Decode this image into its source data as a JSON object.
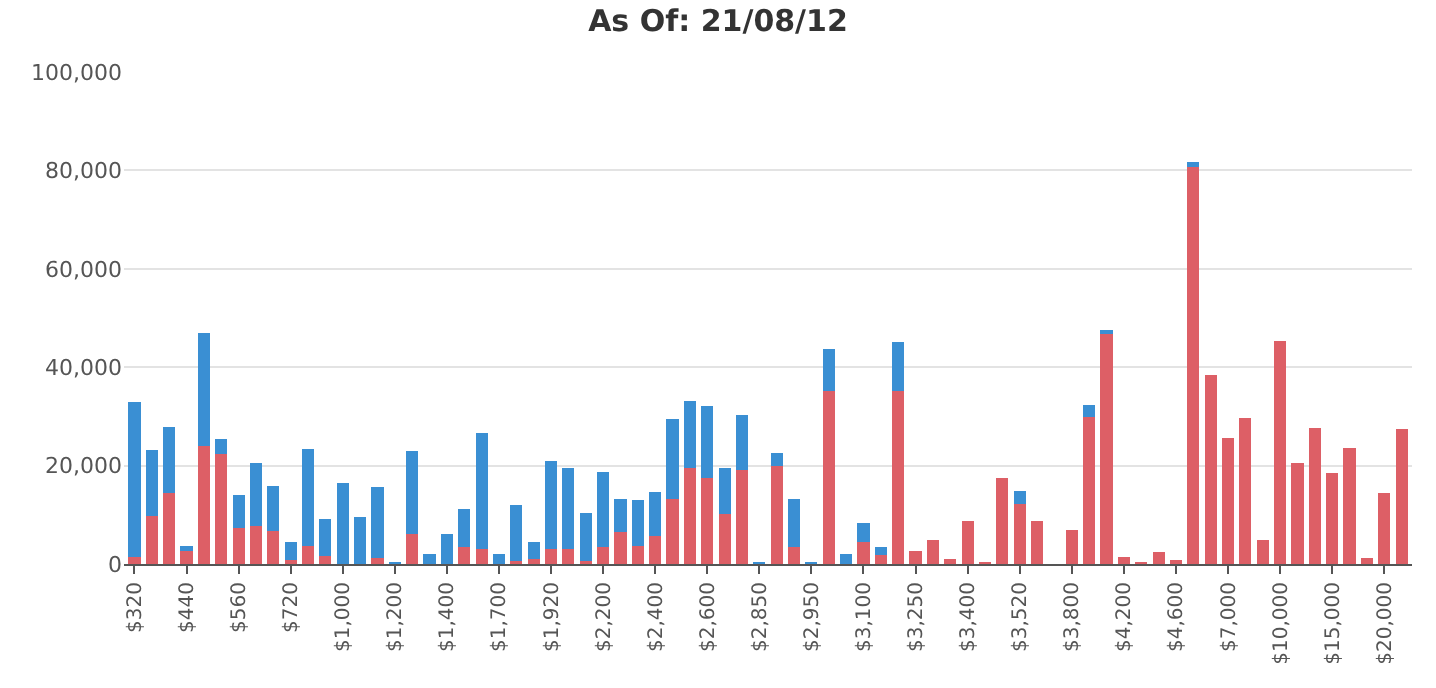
{
  "chart_data": {
    "type": "bar",
    "title": "As Of: 21/08/12",
    "stacked": true,
    "categories": [
      "$320",
      null,
      null,
      "$440",
      null,
      null,
      "$560",
      null,
      null,
      "$720",
      null,
      null,
      "$1,000",
      null,
      null,
      "$1,200",
      null,
      null,
      "$1,400",
      null,
      null,
      "$1,700",
      null,
      null,
      "$1,920",
      null,
      null,
      "$2,200",
      null,
      null,
      "$2,400",
      null,
      null,
      "$2,600",
      null,
      null,
      "$2,850",
      null,
      null,
      "$2,950",
      null,
      null,
      "$3,100",
      null,
      null,
      "$3,250",
      null,
      null,
      "$3,400",
      null,
      null,
      "$3,520",
      null,
      null,
      "$3,800",
      null,
      null,
      "$4,200",
      null,
      null,
      "$4,600",
      null,
      null,
      "$7,000",
      null,
      null,
      "$10,000",
      null,
      null,
      "$15,000",
      null,
      null,
      "$20,000",
      null
    ],
    "series": [
      {
        "color": "#dd5f66",
        "values": [
          1500,
          9800,
          14500,
          2700,
          23900,
          22300,
          7300,
          7700,
          6800,
          900,
          3600,
          1600,
          0,
          0,
          1300,
          0,
          6100,
          0,
          0,
          3400,
          3100,
          0,
          700,
          1100,
          3100,
          3100,
          600,
          3400,
          6500,
          3600,
          5600,
          13300,
          19500,
          17500,
          10200,
          19100,
          0,
          19900,
          3400,
          0,
          35100,
          0,
          4400,
          1900,
          35100,
          2700,
          4900,
          1100,
          8700,
          200,
          17500,
          12100,
          8700,
          0,
          7000,
          29900,
          46900,
          1400,
          200,
          2400,
          700,
          80700,
          38400,
          25600,
          29600,
          4900,
          45300,
          20600,
          27600,
          18500,
          23600,
          1200,
          14400,
          27500
        ]
      },
      {
        "color": "#3a8fd3",
        "values": [
          31500,
          13300,
          13400,
          900,
          23000,
          3200,
          6700,
          12900,
          9100,
          3500,
          19700,
          7600,
          16400,
          9500,
          14400,
          400,
          16900,
          2100,
          6100,
          7800,
          23500,
          2100,
          11200,
          3300,
          17800,
          16400,
          9700,
          15400,
          6700,
          9500,
          9000,
          16100,
          13700,
          14700,
          9300,
          11200,
          200,
          2700,
          9800,
          400,
          8700,
          2100,
          3900,
          1500,
          10000,
          0,
          0,
          0,
          0,
          0,
          0,
          2700,
          0,
          0,
          0,
          2400,
          700,
          0,
          0,
          0,
          0,
          1000,
          0,
          0,
          0,
          0,
          0,
          0,
          0,
          0,
          0,
          0,
          0,
          0
        ]
      }
    ],
    "ylim": [
      0,
      100000
    ],
    "yticks": [
      0,
      {
        "value": 20000,
        "label": "20,000"
      },
      {
        "value": 40000,
        "label": "40,000"
      },
      {
        "value": 60000,
        "label": "60,000"
      },
      {
        "value": 80000,
        "label": "80,000"
      },
      {
        "value": 100000,
        "label": "100,000"
      }
    ],
    "grid": "y"
  }
}
